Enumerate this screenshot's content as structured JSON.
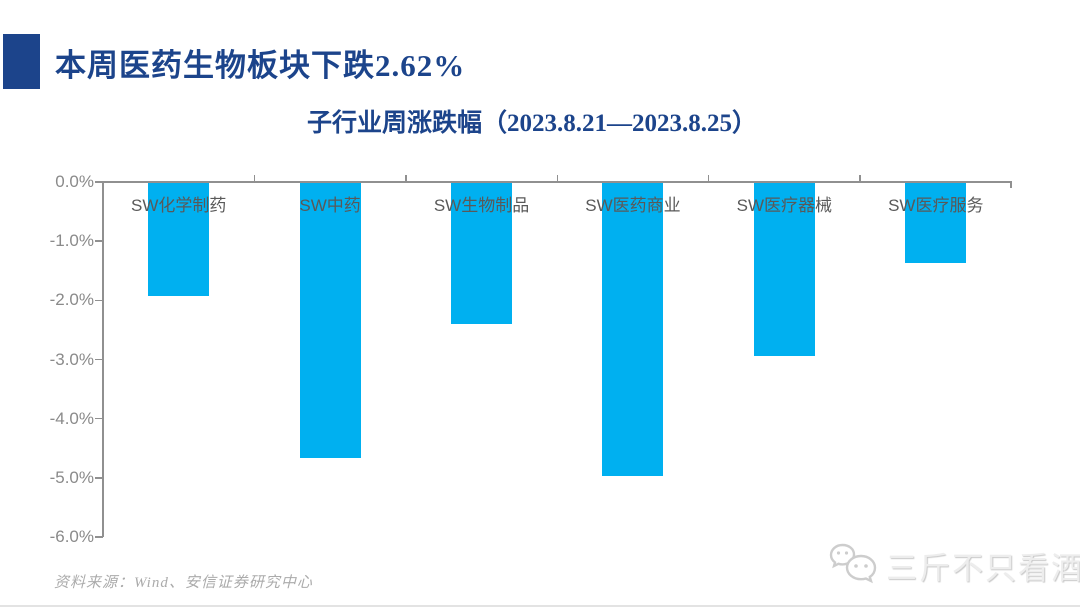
{
  "header": {
    "title": "本周医药生物板块下跌2.62%",
    "accent_color": "#1c448b"
  },
  "chart_data": {
    "type": "bar",
    "title": "子行业周涨跌幅（2023.8.21—2023.8.25）",
    "categories": [
      "SW化学制药",
      "SW中药",
      "SW生物制品",
      "SW医药商业",
      "SW医疗器械",
      "SW医疗服务"
    ],
    "values": [
      -1.91,
      -4.65,
      -2.38,
      -4.95,
      -2.92,
      -1.35
    ],
    "unit": "%",
    "ylim": [
      -6.0,
      0.0
    ],
    "yticks": [
      "0.0%",
      "-1.0%",
      "-2.0%",
      "-3.0%",
      "-4.0%",
      "-5.0%",
      "-6.0%"
    ],
    "ytick_values": [
      0,
      -1,
      -2,
      -3,
      -4,
      -5,
      -6
    ],
    "bar_color": "#00b0f0",
    "grid": false,
    "legend": "none",
    "xlabel": "",
    "ylabel": ""
  },
  "footer": {
    "source": "资料来源：Wind、安信证券研究中心",
    "watermark": "三斤不只看酒"
  }
}
